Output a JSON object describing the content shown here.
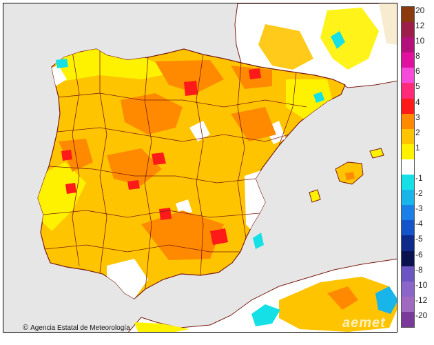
{
  "credit": {
    "text": "Agencia Estatal de Meteorología",
    "icon": "copyright-icon"
  },
  "watermark": "aemet",
  "legend": {
    "classes": [
      {
        "label": "20",
        "color": "#8b3a0f"
      },
      {
        "label": "12",
        "color": "#9c1f4a"
      },
      {
        "label": "10",
        "color": "#b3107c"
      },
      {
        "label": "8",
        "color": "#e0119e"
      },
      {
        "label": "6",
        "color": "#f54bd8"
      },
      {
        "label": "5",
        "color": "#ff2b7a"
      },
      {
        "label": "4",
        "color": "#ff1a1a"
      },
      {
        "label": "3",
        "color": "#ff8a00"
      },
      {
        "label": "2",
        "color": "#ffc400"
      },
      {
        "label": "1",
        "color": "#fff200"
      },
      {
        "label": "",
        "color": "#ffffff"
      },
      {
        "label": "-1",
        "color": "#15e0e6"
      },
      {
        "label": "-2",
        "color": "#18b5ea"
      },
      {
        "label": "-3",
        "color": "#1a7fe6"
      },
      {
        "label": "-4",
        "color": "#1454c8"
      },
      {
        "label": "-5",
        "color": "#0e2a8a"
      },
      {
        "label": "-6",
        "color": "#0b1250"
      },
      {
        "label": "-8",
        "color": "#6a55c2"
      },
      {
        "label": "-10",
        "color": "#8a66c8"
      },
      {
        "label": "-12",
        "color": "#a06ac0"
      },
      {
        "label": "-20",
        "color": "#7a3a9a"
      }
    ]
  },
  "colors": {
    "sea": "#e6e6e6",
    "land_base": "#ffc400",
    "borders": "#7a1a10"
  }
}
